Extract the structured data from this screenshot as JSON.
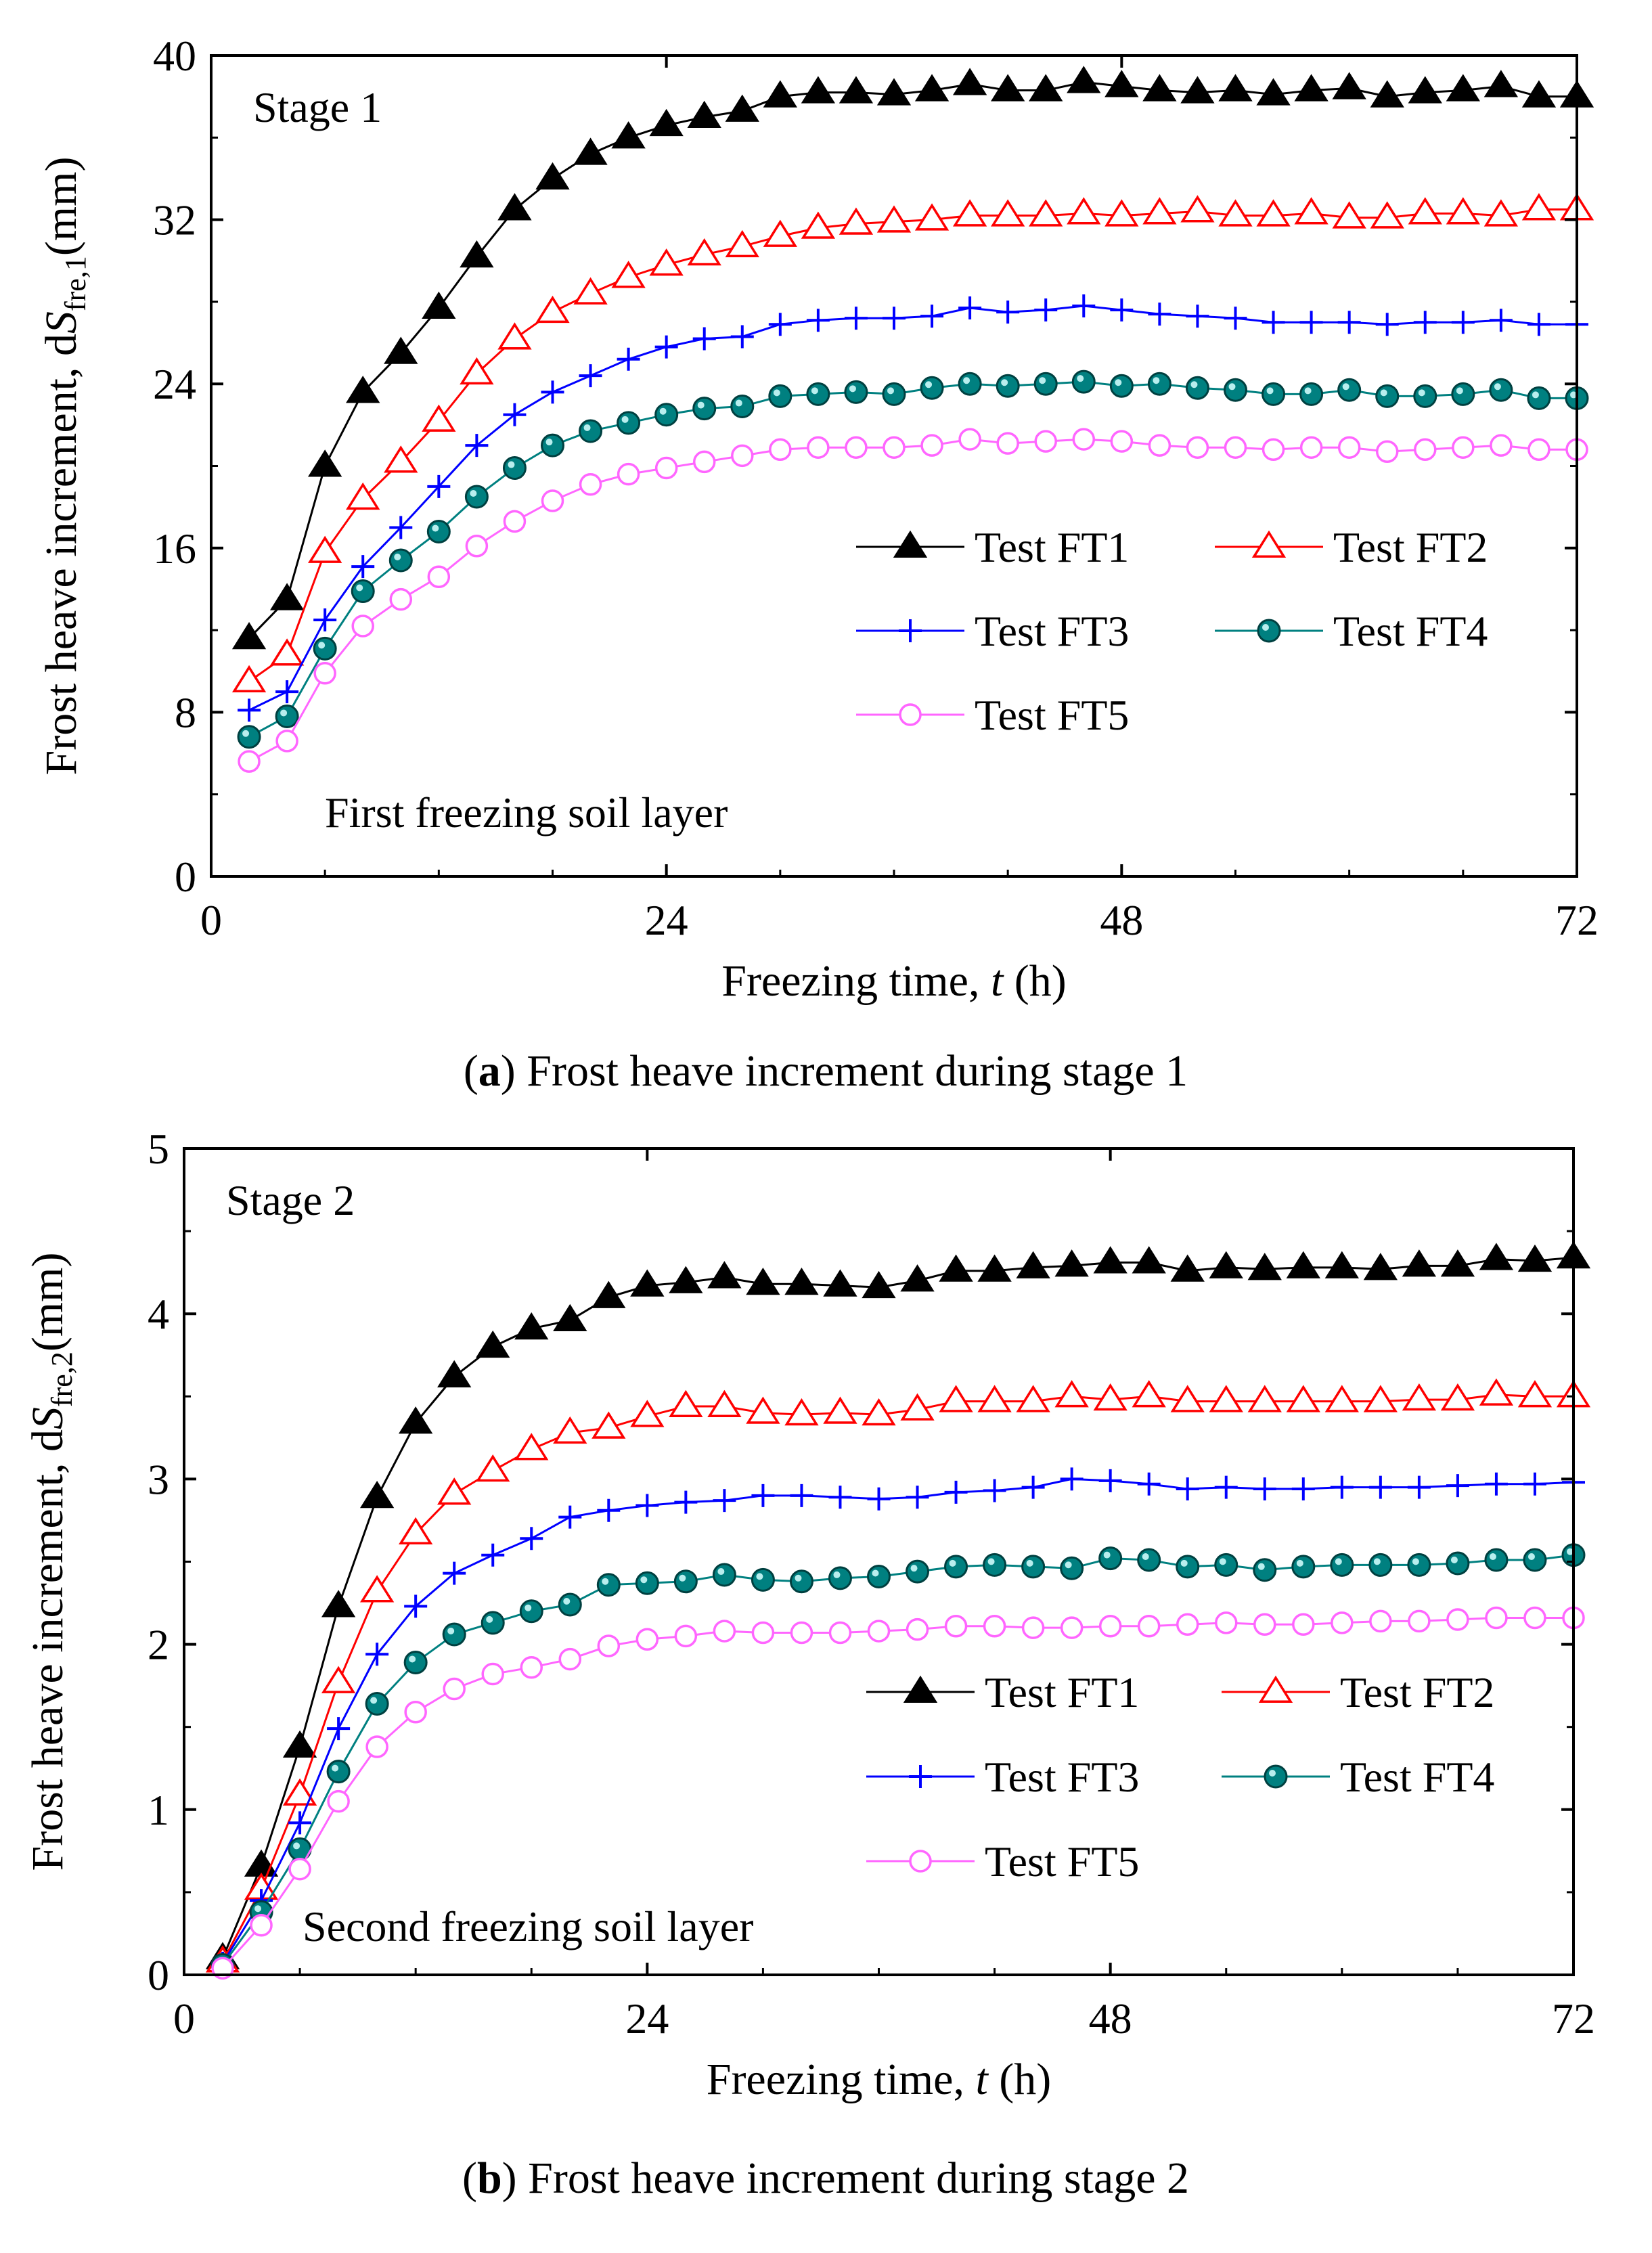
{
  "chart_data": [
    {
      "id": "a",
      "type": "line",
      "caption_prefix": "(",
      "caption_letter": "a",
      "caption_text": ") Frost heave increment during stage 1",
      "stage_label": "Stage 1",
      "layer_label": "First freezing soil layer",
      "xlabel_main": "Freezing time, ",
      "xlabel_var": "t",
      "xlabel_unit": " (h)",
      "ylabel_main": "Frost heave increment, d",
      "ylabel_var": "S",
      "ylabel_sub": "fre,1",
      "ylabel_unit": "(mm)",
      "xlim": [
        0,
        72
      ],
      "ylim": [
        0,
        40
      ],
      "xticks": [
        0,
        24,
        48,
        72
      ],
      "yticks": [
        0,
        8,
        16,
        24,
        32,
        40
      ],
      "grid": false,
      "legend_position": "center-right",
      "x": [
        2,
        4,
        6,
        8,
        10,
        12,
        14,
        16,
        18,
        20,
        22,
        24,
        26,
        28,
        30,
        32,
        34,
        36,
        38,
        40,
        42,
        44,
        46,
        48,
        50,
        52,
        54,
        56,
        58,
        60,
        62,
        64,
        66,
        68,
        70,
        72
      ],
      "series": [
        {
          "name": "Test FT1",
          "label": "Test FT1",
          "color": "#000000",
          "marker": "triangle-filled",
          "values": [
            11.6,
            13.5,
            20.0,
            23.6,
            25.5,
            27.7,
            30.2,
            32.5,
            34.0,
            35.2,
            36.0,
            36.6,
            37.0,
            37.3,
            38.0,
            38.2,
            38.2,
            38.1,
            38.3,
            38.6,
            38.3,
            38.3,
            38.7,
            38.5,
            38.3,
            38.2,
            38.3,
            38.1,
            38.3,
            38.4,
            38.0,
            38.2,
            38.3,
            38.5,
            38.0,
            38.0
          ]
        },
        {
          "name": "Test FT2",
          "label": "Test FT2",
          "color": "#ff0000",
          "marker": "triangle-open",
          "values": [
            9.5,
            10.8,
            15.8,
            18.4,
            20.2,
            22.2,
            24.5,
            26.2,
            27.5,
            28.4,
            29.2,
            29.8,
            30.3,
            30.7,
            31.2,
            31.6,
            31.8,
            31.9,
            32.0,
            32.2,
            32.2,
            32.2,
            32.3,
            32.2,
            32.3,
            32.4,
            32.2,
            32.2,
            32.3,
            32.1,
            32.1,
            32.3,
            32.3,
            32.2,
            32.5,
            32.5
          ]
        },
        {
          "name": "Test FT3",
          "label": "Test FT3",
          "color": "#0000ff",
          "marker": "plus",
          "values": [
            8.1,
            9.0,
            12.5,
            15.1,
            17.0,
            19.0,
            21.0,
            22.5,
            23.6,
            24.4,
            25.2,
            25.8,
            26.2,
            26.3,
            26.9,
            27.1,
            27.2,
            27.2,
            27.3,
            27.7,
            27.5,
            27.6,
            27.8,
            27.6,
            27.4,
            27.3,
            27.2,
            27.0,
            27.0,
            27.0,
            26.9,
            27.0,
            27.0,
            27.1,
            26.9,
            26.9
          ]
        },
        {
          "name": "Test FT4",
          "label": "Test FT4",
          "color": "#008080",
          "marker": "circle-filled",
          "values": [
            6.8,
            7.8,
            11.1,
            13.9,
            15.4,
            16.8,
            18.5,
            19.9,
            21.0,
            21.7,
            22.1,
            22.5,
            22.8,
            22.9,
            23.4,
            23.5,
            23.6,
            23.5,
            23.8,
            24.0,
            23.9,
            24.0,
            24.1,
            23.9,
            24.0,
            23.8,
            23.7,
            23.5,
            23.5,
            23.7,
            23.4,
            23.4,
            23.5,
            23.7,
            23.3,
            23.3
          ]
        },
        {
          "name": "Test FT5",
          "label": "Test FT5",
          "color": "#ff66ff",
          "marker": "circle-open",
          "values": [
            5.6,
            6.6,
            9.9,
            12.2,
            13.5,
            14.6,
            16.1,
            17.3,
            18.3,
            19.1,
            19.6,
            19.9,
            20.2,
            20.5,
            20.8,
            20.9,
            20.9,
            20.9,
            21.0,
            21.3,
            21.1,
            21.2,
            21.3,
            21.2,
            21.0,
            20.9,
            20.9,
            20.8,
            20.9,
            20.9,
            20.7,
            20.8,
            20.9,
            21.0,
            20.8,
            20.8
          ]
        }
      ]
    },
    {
      "id": "b",
      "type": "line",
      "caption_prefix": "(",
      "caption_letter": "b",
      "caption_text": ") Frost heave increment during stage 2",
      "stage_label": "Stage 2",
      "layer_label": "Second freezing soil layer",
      "xlabel_main": "Freezing time, ",
      "xlabel_var": "t",
      "xlabel_unit": " (h)",
      "ylabel_main": "Frost heave increment, d",
      "ylabel_var": "S",
      "ylabel_sub": "fre,2",
      "ylabel_unit": "(mm)",
      "xlim": [
        0,
        72
      ],
      "ylim": [
        0,
        5
      ],
      "xticks": [
        0,
        24,
        48,
        72
      ],
      "yticks": [
        0,
        1,
        2,
        3,
        4,
        5
      ],
      "grid": false,
      "legend_position": "center-right",
      "x": [
        2,
        4,
        6,
        8,
        10,
        12,
        14,
        16,
        18,
        20,
        22,
        24,
        26,
        28,
        30,
        32,
        34,
        36,
        38,
        40,
        42,
        44,
        46,
        48,
        50,
        52,
        54,
        56,
        58,
        60,
        62,
        64,
        66,
        68,
        70,
        72
      ],
      "series": [
        {
          "name": "Test FT1",
          "label": "Test FT1",
          "color": "#000000",
          "marker": "triangle-filled",
          "values": [
            0.1,
            0.66,
            1.38,
            2.23,
            2.89,
            3.34,
            3.62,
            3.8,
            3.91,
            3.96,
            4.1,
            4.17,
            4.19,
            4.22,
            4.18,
            4.18,
            4.17,
            4.16,
            4.2,
            4.26,
            4.26,
            4.28,
            4.29,
            4.31,
            4.31,
            4.26,
            4.28,
            4.27,
            4.28,
            4.28,
            4.27,
            4.29,
            4.29,
            4.33,
            4.32,
            4.34
          ]
        },
        {
          "name": "Test FT2",
          "label": "Test FT2",
          "color": "#ff0000",
          "marker": "triangle-open",
          "values": [
            0.08,
            0.52,
            1.09,
            1.77,
            2.32,
            2.67,
            2.91,
            3.05,
            3.18,
            3.28,
            3.31,
            3.38,
            3.44,
            3.44,
            3.4,
            3.39,
            3.4,
            3.39,
            3.42,
            3.47,
            3.47,
            3.47,
            3.5,
            3.48,
            3.5,
            3.47,
            3.47,
            3.47,
            3.47,
            3.47,
            3.47,
            3.48,
            3.48,
            3.51,
            3.5,
            3.5
          ]
        },
        {
          "name": "Test FT3",
          "label": "Test FT3",
          "color": "#0000ff",
          "marker": "plus",
          "values": [
            0.07,
            0.45,
            0.92,
            1.49,
            1.94,
            2.23,
            2.43,
            2.54,
            2.64,
            2.77,
            2.81,
            2.84,
            2.86,
            2.87,
            2.9,
            2.9,
            2.89,
            2.88,
            2.89,
            2.92,
            2.93,
            2.95,
            3.0,
            2.99,
            2.97,
            2.94,
            2.95,
            2.94,
            2.94,
            2.95,
            2.95,
            2.95,
            2.96,
            2.97,
            2.97,
            2.98
          ]
        },
        {
          "name": "Test FT4",
          "label": "Test FT4",
          "color": "#008080",
          "marker": "circle-filled",
          "values": [
            0.06,
            0.38,
            0.76,
            1.23,
            1.64,
            1.89,
            2.06,
            2.13,
            2.2,
            2.24,
            2.36,
            2.37,
            2.38,
            2.42,
            2.39,
            2.38,
            2.4,
            2.41,
            2.44,
            2.47,
            2.48,
            2.47,
            2.46,
            2.52,
            2.51,
            2.47,
            2.48,
            2.45,
            2.47,
            2.48,
            2.48,
            2.48,
            2.49,
            2.51,
            2.51,
            2.54
          ]
        },
        {
          "name": "Test FT5",
          "label": "Test FT5",
          "color": "#ff66ff",
          "marker": "circle-open",
          "values": [
            0.04,
            0.3,
            0.64,
            1.05,
            1.38,
            1.59,
            1.73,
            1.82,
            1.86,
            1.91,
            1.99,
            2.03,
            2.05,
            2.08,
            2.07,
            2.07,
            2.07,
            2.08,
            2.09,
            2.11,
            2.11,
            2.1,
            2.1,
            2.11,
            2.11,
            2.12,
            2.13,
            2.12,
            2.12,
            2.13,
            2.14,
            2.14,
            2.15,
            2.16,
            2.16,
            2.16
          ]
        }
      ]
    }
  ]
}
